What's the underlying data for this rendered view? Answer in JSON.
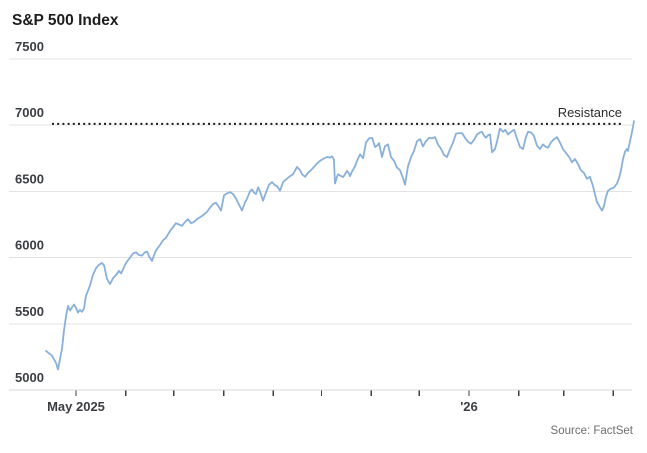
{
  "title": "S&P 500 Index",
  "source": "Source: FactSet",
  "annotations": {
    "resistance_label": "Resistance"
  },
  "colors": {
    "line": "#88b0da",
    "grid": "#e3e3e3",
    "axis_ticks": "#3f3f3f",
    "resistance": "#1b1b1b",
    "text_dark": "#3a3d42",
    "text_muted": "#6e6e6e"
  },
  "chart_data": {
    "type": "line",
    "title": "S&P 500 Index",
    "xlabel": "",
    "ylabel": "",
    "grid": "horizontal-only",
    "legend": "none",
    "x_axis": {
      "unit": "days since 2025-05-01",
      "tick_labels": [
        {
          "label": "May 2025",
          "day": 0
        },
        {
          "label": "'26",
          "day": 245
        }
      ],
      "month_tick_days": [
        0,
        31,
        61,
        92,
        123,
        153,
        184,
        214,
        245,
        276,
        304,
        335
      ]
    },
    "y_axis": {
      "ticks": [
        7500,
        7000,
        6500,
        6000,
        5500,
        5000
      ],
      "ylim": [
        5000,
        7500
      ]
    },
    "resistance_level": 7010,
    "series": [
      {
        "name": "S&P 500 Index",
        "points": [
          [
            -18.7,
            5295
          ],
          [
            -15,
            5260
          ],
          [
            -12.5,
            5205
          ],
          [
            -11.2,
            5155
          ],
          [
            -10,
            5235
          ],
          [
            -8.7,
            5310
          ],
          [
            -7.5,
            5450
          ],
          [
            -6.2,
            5560
          ],
          [
            -5,
            5635
          ],
          [
            -3.7,
            5600
          ],
          [
            -2.5,
            5625
          ],
          [
            -1.2,
            5645
          ],
          [
            0,
            5620
          ],
          [
            1.2,
            5585
          ],
          [
            2.5,
            5605
          ],
          [
            3.7,
            5590
          ],
          [
            5,
            5615
          ],
          [
            6.2,
            5710
          ],
          [
            7.5,
            5750
          ],
          [
            8.7,
            5790
          ],
          [
            10.6,
            5870
          ],
          [
            12.5,
            5920
          ],
          [
            14.3,
            5945
          ],
          [
            16.2,
            5960
          ],
          [
            17.5,
            5940
          ],
          [
            19.3,
            5840
          ],
          [
            21.2,
            5800
          ],
          [
            23.1,
            5845
          ],
          [
            24.3,
            5860
          ],
          [
            25.6,
            5880
          ],
          [
            26.8,
            5900
          ],
          [
            28.1,
            5880
          ],
          [
            29.3,
            5910
          ],
          [
            30.6,
            5945
          ],
          [
            31.8,
            5970
          ],
          [
            33.7,
            6000
          ],
          [
            35.5,
            6030
          ],
          [
            37.4,
            6040
          ],
          [
            39.3,
            6020
          ],
          [
            41.1,
            6015
          ],
          [
            43,
            6040
          ],
          [
            44.3,
            6045
          ],
          [
            45.5,
            6010
          ],
          [
            47.4,
            5975
          ],
          [
            49.3,
            6040
          ],
          [
            50.5,
            6065
          ],
          [
            52.4,
            6095
          ],
          [
            54.2,
            6130
          ],
          [
            56.1,
            6150
          ],
          [
            58.6,
            6200
          ],
          [
            60.5,
            6230
          ],
          [
            62.3,
            6260
          ],
          [
            64.2,
            6250
          ],
          [
            66.1,
            6240
          ],
          [
            68,
            6270
          ],
          [
            69.8,
            6290
          ],
          [
            71.7,
            6260
          ],
          [
            73.6,
            6270
          ],
          [
            75.4,
            6290
          ],
          [
            77.3,
            6305
          ],
          [
            79.2,
            6320
          ],
          [
            81.7,
            6345
          ],
          [
            83.5,
            6375
          ],
          [
            85.4,
            6405
          ],
          [
            87.3,
            6415
          ],
          [
            89.2,
            6380
          ],
          [
            90.4,
            6355
          ],
          [
            92.3,
            6470
          ],
          [
            94.1,
            6485
          ],
          [
            96,
            6495
          ],
          [
            97.9,
            6480
          ],
          [
            99.8,
            6445
          ],
          [
            101.6,
            6400
          ],
          [
            103.5,
            6355
          ],
          [
            105.4,
            6420
          ],
          [
            106.6,
            6445
          ],
          [
            108.5,
            6500
          ],
          [
            109.7,
            6515
          ],
          [
            111,
            6490
          ],
          [
            112.2,
            6480
          ],
          [
            113.5,
            6530
          ],
          [
            114.7,
            6500
          ],
          [
            116.6,
            6430
          ],
          [
            118.4,
            6490
          ],
          [
            120.3,
            6550
          ],
          [
            122.2,
            6570
          ],
          [
            124.1,
            6545
          ],
          [
            125.3,
            6540
          ],
          [
            127.2,
            6505
          ],
          [
            129.1,
            6570
          ],
          [
            131.5,
            6595
          ],
          [
            133.4,
            6615
          ],
          [
            135.3,
            6630
          ],
          [
            137.8,
            6685
          ],
          [
            139.7,
            6660
          ],
          [
            140.9,
            6630
          ],
          [
            142.8,
            6610
          ],
          [
            144.6,
            6640
          ],
          [
            146.5,
            6660
          ],
          [
            148.4,
            6685
          ],
          [
            150.2,
            6710
          ],
          [
            152.1,
            6730
          ],
          [
            154,
            6745
          ],
          [
            156.5,
            6760
          ],
          [
            158.4,
            6755
          ],
          [
            159.6,
            6765
          ],
          [
            160.8,
            6740
          ],
          [
            161.5,
            6560
          ],
          [
            162.7,
            6610
          ],
          [
            163.4,
            6630
          ],
          [
            164.6,
            6620
          ],
          [
            166.5,
            6608
          ],
          [
            167.7,
            6630
          ],
          [
            169,
            6655
          ],
          [
            170.2,
            6635
          ],
          [
            170.8,
            6615
          ],
          [
            172.1,
            6650
          ],
          [
            174,
            6690
          ],
          [
            175.2,
            6730
          ],
          [
            177.1,
            6780
          ],
          [
            179,
            6750
          ],
          [
            180.8,
            6870
          ],
          [
            182.7,
            6900
          ],
          [
            184.6,
            6905
          ],
          [
            186.4,
            6835
          ],
          [
            187.7,
            6845
          ],
          [
            188.9,
            6865
          ],
          [
            190.8,
            6760
          ],
          [
            192.6,
            6840
          ],
          [
            194.5,
            6855
          ],
          [
            196.4,
            6760
          ],
          [
            198.3,
            6730
          ],
          [
            200.1,
            6680
          ],
          [
            202,
            6660
          ],
          [
            203.9,
            6600
          ],
          [
            205.1,
            6550
          ],
          [
            207,
            6690
          ],
          [
            208.9,
            6760
          ],
          [
            210.7,
            6805
          ],
          [
            212.6,
            6880
          ],
          [
            214.5,
            6895
          ],
          [
            216.3,
            6840
          ],
          [
            218.2,
            6880
          ],
          [
            220.1,
            6905
          ],
          [
            222,
            6900
          ],
          [
            223.8,
            6910
          ],
          [
            225.7,
            6855
          ],
          [
            227.6,
            6820
          ],
          [
            229.4,
            6775
          ],
          [
            231.3,
            6760
          ],
          [
            233.2,
            6820
          ],
          [
            235.1,
            6870
          ],
          [
            236.9,
            6935
          ],
          [
            238.8,
            6940
          ],
          [
            240.7,
            6940
          ],
          [
            242.5,
            6905
          ],
          [
            244.4,
            6875
          ],
          [
            246.3,
            6860
          ],
          [
            248.1,
            6890
          ],
          [
            250,
            6930
          ],
          [
            251.9,
            6945
          ],
          [
            253.1,
            6950
          ],
          [
            254.4,
            6920
          ],
          [
            255.6,
            6905
          ],
          [
            256.9,
            6925
          ],
          [
            258.1,
            6930
          ],
          [
            259.4,
            6795
          ],
          [
            261.2,
            6820
          ],
          [
            262.5,
            6880
          ],
          [
            264.3,
            6975
          ],
          [
            266.2,
            6950
          ],
          [
            267.5,
            6965
          ],
          [
            269.3,
            6930
          ],
          [
            271.2,
            6950
          ],
          [
            273.1,
            6965
          ],
          [
            274.9,
            6900
          ],
          [
            276.8,
            6835
          ],
          [
            278.7,
            6820
          ],
          [
            280.5,
            6910
          ],
          [
            281.8,
            6950
          ],
          [
            283.7,
            6945
          ],
          [
            285.5,
            6920
          ],
          [
            287.4,
            6845
          ],
          [
            289.3,
            6820
          ],
          [
            291.1,
            6855
          ],
          [
            293,
            6835
          ],
          [
            294.3,
            6830
          ],
          [
            296.1,
            6870
          ],
          [
            298,
            6895
          ],
          [
            299.9,
            6910
          ],
          [
            301.7,
            6870
          ],
          [
            303.6,
            6820
          ],
          [
            305.5,
            6790
          ],
          [
            307.4,
            6760
          ],
          [
            309.2,
            6720
          ],
          [
            311.1,
            6745
          ],
          [
            313,
            6705
          ],
          [
            314.8,
            6660
          ],
          [
            316.7,
            6640
          ],
          [
            318.6,
            6595
          ],
          [
            320.4,
            6610
          ],
          [
            322.3,
            6540
          ],
          [
            323.5,
            6480
          ],
          [
            324.8,
            6420
          ],
          [
            326.7,
            6380
          ],
          [
            327.9,
            6355
          ],
          [
            329.2,
            6390
          ],
          [
            330.4,
            6460
          ],
          [
            331.7,
            6505
          ],
          [
            333.5,
            6520
          ],
          [
            335.4,
            6530
          ],
          [
            337.3,
            6560
          ],
          [
            338.5,
            6600
          ],
          [
            339.8,
            6660
          ],
          [
            341,
            6745
          ],
          [
            342.3,
            6800
          ],
          [
            343.5,
            6820
          ],
          [
            344.1,
            6805
          ],
          [
            345.4,
            6880
          ],
          [
            346.6,
            6945
          ],
          [
            347.9,
            7030
          ]
        ]
      }
    ]
  }
}
